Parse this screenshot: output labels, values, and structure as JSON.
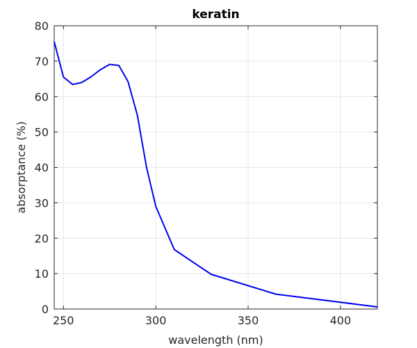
{
  "chart_data": {
    "type": "line",
    "title": "keratin",
    "xlabel": "wavelength (nm)",
    "ylabel": "absorptance (%)",
    "xlim": [
      245,
      420
    ],
    "ylim": [
      0,
      80
    ],
    "xticks": [
      250,
      300,
      350,
      400
    ],
    "yticks": [
      0,
      10,
      20,
      30,
      40,
      50,
      60,
      70,
      80
    ],
    "xtick_labels": [
      "250",
      "300",
      "350",
      "400"
    ],
    "ytick_labels": [
      "0",
      "10",
      "20",
      "30",
      "40",
      "50",
      "60",
      "70",
      "80"
    ],
    "grid": true,
    "series": [
      {
        "color": "#0000ee",
        "x": [
          245,
          250,
          255,
          260,
          265,
          270,
          275,
          280,
          285,
          290,
          295,
          300,
          310,
          330,
          365,
          420
        ],
        "y": [
          75.5,
          65.5,
          63.4,
          64.0,
          65.6,
          67.6,
          69.1,
          68.8,
          64.2,
          54.8,
          40.0,
          29.0,
          16.8,
          9.8,
          4.2,
          0.6
        ]
      }
    ]
  }
}
